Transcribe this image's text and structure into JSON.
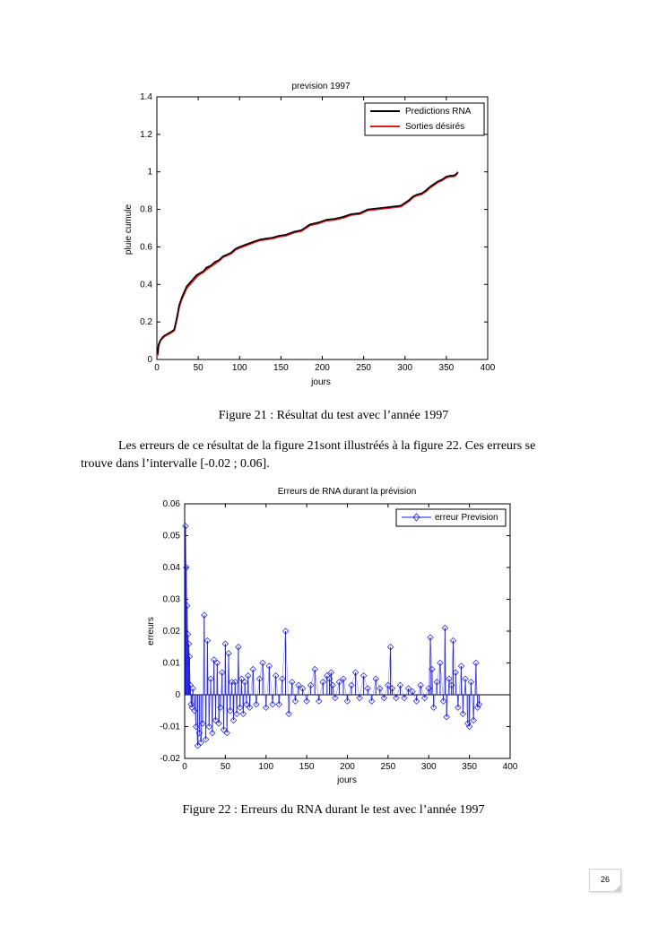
{
  "figure21": {
    "caption": "Figure 21 : Résultat du test  avec l’année 1997"
  },
  "paragraph": {
    "line1": "Les erreurs de ce résultat de la figure 21sont illustréés à la figure 22. Ces erreurs se",
    "line2": "trouve  dans  l’intervalle [-0.02 ; 0.06]."
  },
  "figure22": {
    "caption": "Figure 22 : Erreurs du RNA durant le test avec l’année 1997"
  },
  "page_number": "26",
  "colors": {
    "predictions": "#000000",
    "desired": "#e0191b",
    "errors": "#1a1ae6"
  },
  "chart_data": [
    {
      "type": "line",
      "title": "prevision 1997",
      "xlabel": "jours",
      "ylabel": "pluie cumule",
      "xlim": [
        0,
        400
      ],
      "ylim": [
        0,
        1.4
      ],
      "xticks": [
        0,
        50,
        100,
        150,
        200,
        250,
        300,
        350,
        400
      ],
      "yticks": [
        0,
        0.2,
        0.4,
        0.6,
        0.8,
        1,
        1.2,
        1.4
      ],
      "yticklabels": [
        "0",
        "0.2",
        "0.4",
        "0.6",
        "0.8",
        "1",
        "1.2",
        "1.4"
      ],
      "legend_position": "top-right",
      "grid": false,
      "series": [
        {
          "name": "Predictions RNA",
          "color": "#000000",
          "x": [
            1,
            2,
            4,
            7,
            10,
            14,
            18,
            21,
            24,
            27,
            30,
            33,
            36,
            40,
            44,
            48,
            52,
            56,
            60,
            65,
            70,
            75,
            80,
            85,
            90,
            95,
            100,
            106,
            112,
            118,
            125,
            132,
            140,
            148,
            156,
            165,
            175,
            185,
            195,
            205,
            215,
            225,
            235,
            245,
            255,
            265,
            275,
            285,
            295,
            300,
            305,
            310,
            315,
            320,
            325,
            330,
            335,
            340,
            345,
            350,
            355,
            358,
            361,
            364
          ],
          "y": [
            0.03,
            0.08,
            0.1,
            0.12,
            0.13,
            0.14,
            0.15,
            0.16,
            0.22,
            0.29,
            0.33,
            0.36,
            0.39,
            0.41,
            0.43,
            0.45,
            0.46,
            0.47,
            0.49,
            0.5,
            0.52,
            0.53,
            0.55,
            0.56,
            0.57,
            0.59,
            0.6,
            0.61,
            0.62,
            0.63,
            0.64,
            0.645,
            0.65,
            0.66,
            0.665,
            0.68,
            0.69,
            0.72,
            0.73,
            0.745,
            0.75,
            0.76,
            0.775,
            0.78,
            0.8,
            0.805,
            0.81,
            0.815,
            0.82,
            0.835,
            0.85,
            0.87,
            0.88,
            0.885,
            0.9,
            0.92,
            0.935,
            0.95,
            0.96,
            0.975,
            0.98,
            0.98,
            0.985,
            0.995
          ]
        },
        {
          "name": "Sorties désirés",
          "color": "#e0191b",
          "x": [
            1,
            2,
            4,
            7,
            10,
            14,
            18,
            21,
            24,
            27,
            30,
            33,
            36,
            40,
            44,
            48,
            52,
            56,
            60,
            65,
            70,
            75,
            80,
            85,
            90,
            95,
            100,
            106,
            112,
            118,
            125,
            132,
            140,
            148,
            156,
            165,
            175,
            185,
            195,
            205,
            215,
            225,
            235,
            245,
            255,
            265,
            275,
            285,
            295,
            300,
            305,
            310,
            315,
            320,
            325,
            330,
            335,
            340,
            345,
            350,
            355,
            358,
            361,
            364
          ],
          "y": [
            0.02,
            0.07,
            0.1,
            0.115,
            0.125,
            0.135,
            0.145,
            0.155,
            0.21,
            0.28,
            0.32,
            0.35,
            0.38,
            0.4,
            0.42,
            0.44,
            0.455,
            0.465,
            0.48,
            0.495,
            0.51,
            0.525,
            0.545,
            0.555,
            0.565,
            0.585,
            0.595,
            0.605,
            0.615,
            0.625,
            0.635,
            0.64,
            0.645,
            0.655,
            0.66,
            0.675,
            0.685,
            0.715,
            0.725,
            0.74,
            0.745,
            0.755,
            0.77,
            0.775,
            0.795,
            0.8,
            0.805,
            0.81,
            0.815,
            0.83,
            0.845,
            0.865,
            0.875,
            0.88,
            0.895,
            0.915,
            0.93,
            0.945,
            0.955,
            0.97,
            0.975,
            0.975,
            0.98,
            1.0
          ]
        }
      ]
    },
    {
      "type": "line",
      "title": "Erreurs de RNA durant la prévision",
      "xlabel": "jours",
      "ylabel": "erreurs",
      "xlim": [
        0,
        400
      ],
      "ylim": [
        -0.02,
        0.06
      ],
      "xticks": [
        0,
        50,
        100,
        150,
        200,
        250,
        300,
        350,
        400
      ],
      "yticks": [
        -0.02,
        -0.01,
        0,
        0.01,
        0.02,
        0.03,
        0.04,
        0.05,
        0.06
      ],
      "yticklabels": [
        "-0.02",
        "-0.01",
        "0",
        "0.01",
        "0.02",
        "0.03",
        "0.04",
        "0.05",
        "0.06"
      ],
      "legend_position": "top-right",
      "grid": false,
      "series": [
        {
          "name": "erreur Prevision",
          "color": "#1a1ae6",
          "x": [
            1,
            2,
            3,
            4,
            5,
            6,
            7,
            8,
            9,
            10,
            12,
            14,
            16,
            18,
            20,
            22,
            24,
            26,
            28,
            30,
            32,
            34,
            36,
            38,
            40,
            42,
            44,
            46,
            48,
            50,
            52,
            54,
            56,
            58,
            60,
            62,
            64,
            66,
            68,
            70,
            72,
            74,
            76,
            78,
            80,
            84,
            88,
            92,
            96,
            100,
            104,
            108,
            112,
            116,
            120,
            124,
            128,
            132,
            136,
            140,
            145,
            150,
            155,
            160,
            165,
            170,
            175,
            178,
            180,
            182,
            185,
            190,
            195,
            200,
            205,
            210,
            215,
            220,
            225,
            230,
            235,
            240,
            245,
            250,
            253,
            255,
            260,
            265,
            270,
            275,
            280,
            285,
            290,
            295,
            300,
            302,
            304,
            306,
            310,
            314,
            318,
            320,
            322,
            325,
            328,
            330,
            333,
            336,
            340,
            342,
            345,
            348,
            350,
            352,
            355,
            358,
            360,
            362
          ],
          "y": [
            0.053,
            0.04,
            0.028,
            0.019,
            0.016,
            0.012,
            0.003,
            -0.003,
            -0.004,
            0.002,
            -0.005,
            -0.01,
            -0.016,
            -0.012,
            -0.015,
            -0.009,
            0.025,
            -0.014,
            0.017,
            -0.01,
            0.005,
            -0.012,
            0.011,
            -0.008,
            0.01,
            -0.009,
            -0.004,
            0.007,
            -0.011,
            0.016,
            -0.012,
            0.013,
            -0.005,
            0.004,
            -0.008,
            0.004,
            -0.006,
            0.015,
            -0.004,
            0.005,
            -0.006,
            0.004,
            -0.003,
            0.006,
            -0.004,
            0.008,
            -0.003,
            0.005,
            0.01,
            -0.004,
            0.009,
            -0.003,
            0.006,
            -0.003,
            0.005,
            0.02,
            -0.006,
            0.004,
            -0.002,
            0.003,
            0.002,
            -0.002,
            0.003,
            0.008,
            -0.002,
            0.004,
            0.006,
            0.005,
            0.007,
            0.003,
            -0.001,
            0.004,
            0.005,
            -0.002,
            0.003,
            0.007,
            -0.001,
            0.006,
            0.002,
            -0.002,
            0.005,
            0.002,
            -0.001,
            0.003,
            0.015,
            0.002,
            -0.001,
            0.003,
            -0.001,
            0.002,
            0.001,
            -0.002,
            0.003,
            -0.001,
            0.002,
            0.018,
            0.008,
            -0.004,
            0.004,
            0.01,
            -0.002,
            0.021,
            -0.007,
            0.005,
            0.003,
            0.017,
            0.007,
            -0.004,
            0.009,
            -0.006,
            0.005,
            -0.009,
            -0.01,
            0.004,
            -0.008,
            0.01,
            -0.004,
            -0.003
          ]
        }
      ]
    }
  ]
}
